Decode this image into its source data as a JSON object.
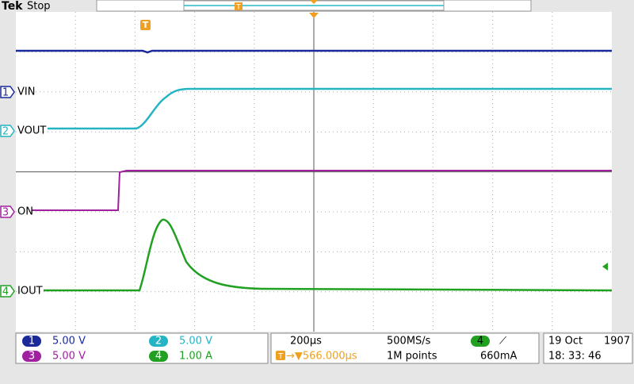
{
  "header": {
    "brand": "Tek",
    "status": "Stop",
    "trigger_marker": "T",
    "record_marker": "T"
  },
  "channels": [
    {
      "number": "1",
      "label": "VIN"
    },
    {
      "number": "2",
      "label": "VOUT"
    },
    {
      "number": "3",
      "label": "ON"
    },
    {
      "number": "4",
      "label": "IOUT"
    }
  ],
  "readouts": {
    "ch1": {
      "number": "1",
      "scale": "5.00 V"
    },
    "ch2": {
      "number": "2",
      "scale": "5.00 V"
    },
    "ch3": {
      "number": "3",
      "scale": "5.00 V"
    },
    "ch4": {
      "number": "4",
      "scale": "1.00 A"
    },
    "timebase": "200µs",
    "sample_rate": "500MS/s",
    "trigger_source": "4",
    "trigger_slope": "⟋",
    "trigger_icon": "T",
    "trigger_position": "→▼566.000µs",
    "record_length": "1M points",
    "trigger_level": "660mA",
    "date": "19 Oct",
    "year": "1907",
    "time": "18: 33: 46"
  }
}
